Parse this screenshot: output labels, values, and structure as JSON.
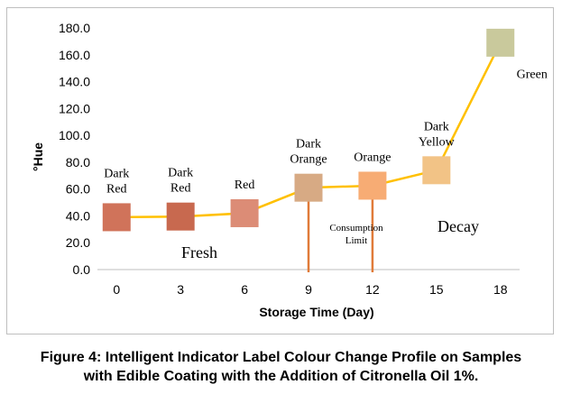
{
  "chart_data": {
    "type": "line",
    "xlabel": "Storage Time (Day)",
    "ylabel": "°Hue",
    "x": [
      0,
      3,
      6,
      9,
      12,
      15,
      18
    ],
    "x_tick_labels": [
      "0",
      "3",
      "6",
      "9",
      "12",
      "15",
      "18"
    ],
    "y_tick_labels": [
      "0.0",
      "20.0",
      "40.0",
      "60.0",
      "80.0",
      "100.0",
      "120.0",
      "140.0",
      "160.0",
      "180.0"
    ],
    "ylim": [
      0,
      180
    ],
    "series": [
      {
        "name": "°Hue",
        "color": "#ffc000",
        "values": [
          39,
          39.5,
          42,
          61,
          62.5,
          74,
          169
        ]
      }
    ],
    "point_labels": [
      {
        "x": 0,
        "lines": [
          "Dark",
          "Red"
        ],
        "color": "#d0735a"
      },
      {
        "x": 3,
        "lines": [
          "Dark",
          "Red"
        ],
        "color": "#c8694f"
      },
      {
        "x": 6,
        "lines": [
          "Red"
        ],
        "color": "#dc8c76"
      },
      {
        "x": 9,
        "lines": [
          "Dark",
          "Orange"
        ],
        "color": "#d7aa84"
      },
      {
        "x": 12,
        "lines": [
          "Orange"
        ],
        "color": "#f7ac74"
      },
      {
        "x": 15,
        "lines": [
          "Dark",
          "Yellow"
        ],
        "color": "#f2c386"
      },
      {
        "x": 18,
        "lines": [
          "Green"
        ],
        "color": "#c9c99c"
      }
    ],
    "markers": [
      {
        "x": 9,
        "color": "#e07b39"
      },
      {
        "x": 12,
        "color": "#e07b39"
      }
    ],
    "annotations": {
      "fresh": "Fresh",
      "consumption_line1": "Consumption",
      "consumption_line2": "Limit",
      "decay": "Decay"
    }
  },
  "caption": {
    "line1": "Figure 4: Intelligent Indicator Label Colour Change Profile on Samples",
    "line2": "with Edible Coating with the Addition of Citronella Oil 1%."
  }
}
